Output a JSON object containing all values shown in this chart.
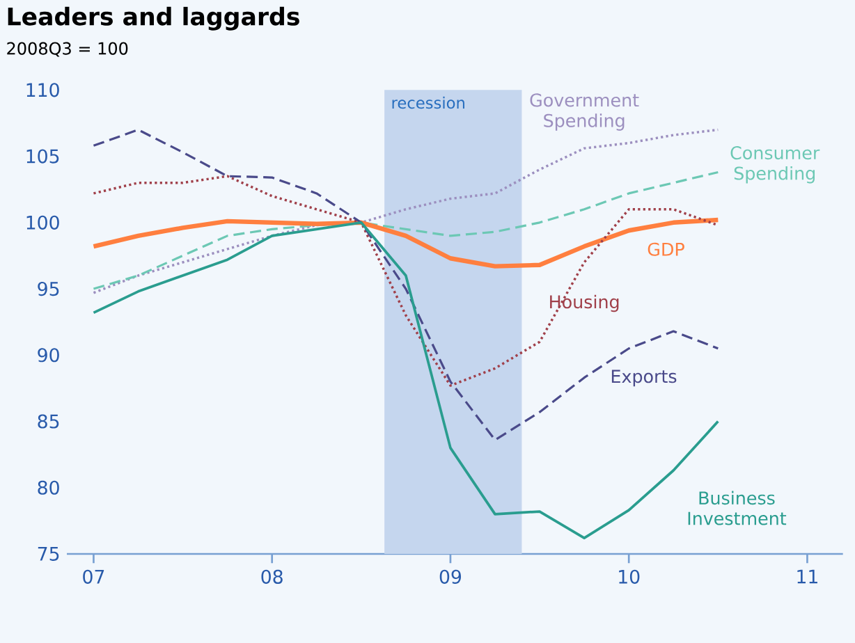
{
  "chart_data": {
    "type": "line",
    "title": "Leaders and laggards",
    "subtitle": "2008Q3 = 100",
    "x": [
      2007,
      2007.25,
      2007.5,
      2007.75,
      2008,
      2008.25,
      2008.5,
      2008.75,
      2009,
      2009.25,
      2009.5,
      2009.75,
      2010,
      2010.25,
      2010.5
    ],
    "series": [
      {
        "name": "Government Spending",
        "color": "#9c8fbf",
        "line_style": "dotted",
        "values": [
          94.7,
          96.0,
          97.0,
          98.0,
          99.0,
          99.8,
          100,
          101.0,
          101.8,
          102.2,
          104.0,
          105.6,
          106.0,
          106.6,
          107.0
        ]
      },
      {
        "name": "Consumer Spending",
        "color": "#6cc8b4",
        "line_style": "dashed",
        "values": [
          95.0,
          96.0,
          97.5,
          99.0,
          99.5,
          99.8,
          100,
          99.5,
          99.0,
          99.3,
          100.0,
          101.0,
          102.2,
          103.0,
          103.8
        ]
      },
      {
        "name": "GDP",
        "color": "#ff7f3f",
        "line_style": "solid",
        "values": [
          98.2,
          99.0,
          99.6,
          100.1,
          100.0,
          99.9,
          100,
          99.0,
          97.3,
          96.7,
          96.8,
          98.2,
          99.4,
          100.0,
          100.2
        ]
      },
      {
        "name": "Housing",
        "color": "#a0404a",
        "line_style": "dotted",
        "values": [
          102.2,
          103.0,
          103.0,
          103.5,
          102.0,
          101.0,
          100,
          93.0,
          87.7,
          89.0,
          91.0,
          97.0,
          101.0,
          101.0,
          99.8
        ]
      },
      {
        "name": "Exports",
        "color": "#4a4a8a",
        "line_style": "dashed",
        "values": [
          105.8,
          107.0,
          105.3,
          103.5,
          103.4,
          102.2,
          100,
          95.0,
          88.0,
          83.6,
          85.7,
          88.3,
          90.5,
          91.8,
          90.5
        ]
      },
      {
        "name": "Business Investment",
        "color": "#2a9d8f",
        "line_style": "solid",
        "values": [
          93.2,
          94.8,
          96.0,
          97.2,
          99.0,
          99.5,
          100,
          96.0,
          83.0,
          78.0,
          78.2,
          76.2,
          78.3,
          81.3,
          85.0
        ]
      }
    ],
    "bands": [
      {
        "axis": "x",
        "from": 2008.63,
        "to": 2009.4,
        "label": "recession",
        "color": "#c5d6ee"
      }
    ],
    "xlim": [
      2006.85,
      2011.2
    ],
    "ylim": [
      75,
      110
    ],
    "xticks": [
      {
        "value": 2007,
        "label": "07"
      },
      {
        "value": 2008,
        "label": "08"
      },
      {
        "value": 2009,
        "label": "09"
      },
      {
        "value": 2010,
        "label": "10"
      },
      {
        "value": 2011,
        "label": "11"
      }
    ],
    "yticks": [
      75,
      80,
      85,
      90,
      95,
      100,
      105,
      110
    ],
    "grid": false,
    "legend": false,
    "marker": "none"
  }
}
